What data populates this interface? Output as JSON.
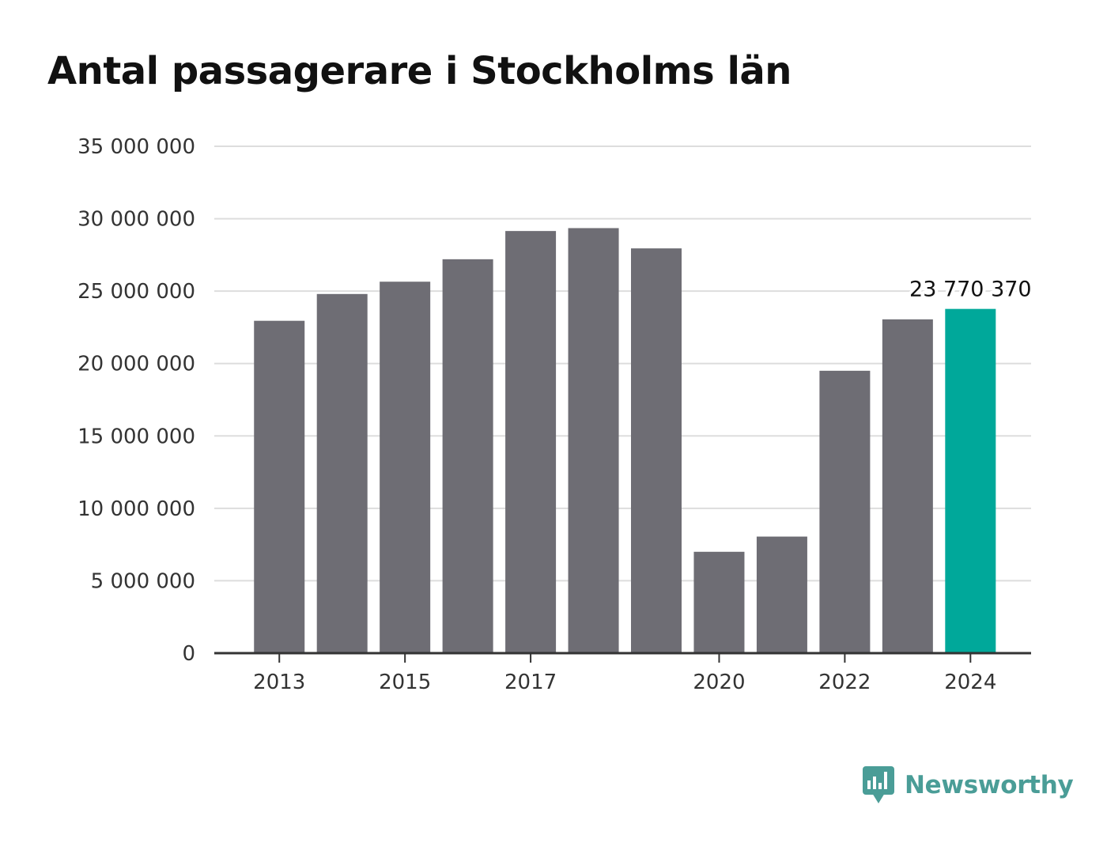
{
  "brand": {
    "name": "Newsworthy",
    "icon": "newsworthy-bar-chart-icon",
    "color": "#4a9d97"
  },
  "colors": {
    "bar": "#6e6d74",
    "highlight": "#00a89a",
    "grid": "#dddddd",
    "axis": "#333333"
  },
  "chart_data": {
    "type": "bar",
    "title": "Antal passagerare i Stockholms län",
    "categories": [
      "2013",
      "2014",
      "2015",
      "2016",
      "2017",
      "2018",
      "2019",
      "2020",
      "2021",
      "2022",
      "2023",
      "2024"
    ],
    "values": [
      22950000,
      24800000,
      25650000,
      27200000,
      29150000,
      29350000,
      27950000,
      7000000,
      8050000,
      19500000,
      23050000,
      23770370
    ],
    "highlight_index": 11,
    "x_tick_labels": [
      "2013",
      "2015",
      "2017",
      "2020",
      "2022",
      "2024"
    ],
    "y_ticks": [
      0,
      5000000,
      10000000,
      15000000,
      20000000,
      25000000,
      30000000,
      35000000
    ],
    "y_tick_labels": [
      "0",
      "5 000 000",
      "10 000 000",
      "15 000 000",
      "20 000 000",
      "25 000 000",
      "30 000 000",
      "35 000 000"
    ],
    "ylim": [
      0,
      35000000
    ],
    "data_labels": [
      {
        "category": "2024",
        "text": "23 770 370"
      }
    ],
    "xlabel": "",
    "ylabel": "",
    "grid": true,
    "legend": "none"
  }
}
